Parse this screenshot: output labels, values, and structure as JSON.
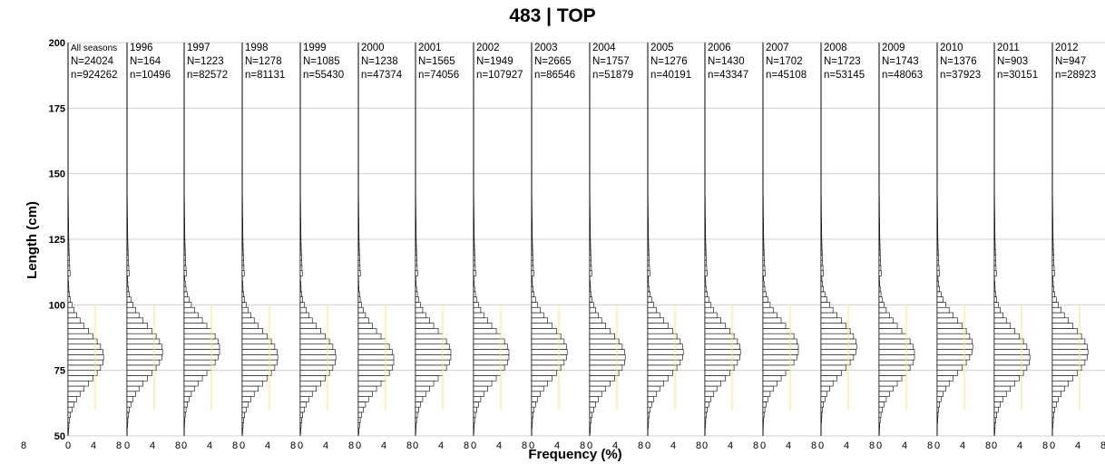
{
  "chart_data": {
    "type": "bar",
    "orientation": "horizontal-small-multiples",
    "title": "483 | TOP",
    "xlabel": "Frequency (%)",
    "ylabel": "Length (cm)",
    "ylim": [
      50,
      200
    ],
    "yticks": [
      50,
      75,
      100,
      125,
      150,
      175,
      200
    ],
    "xticks_first_panel": [
      "8"
    ],
    "xticks": [
      "0",
      "4",
      "8"
    ],
    "grid": "horizontal",
    "colors": {
      "bar_fill": "#ffffff",
      "bar_edge": "#000000",
      "grid": "#d0d0d0",
      "highlight": "#a8a8a8",
      "median_line": "#f0e68c"
    },
    "panels": [
      {
        "label": "All seasons",
        "N": "N=24024",
        "n": "n=924262",
        "mode": 80
      },
      {
        "label": "1996",
        "N": "N=164",
        "n": "n=10496",
        "mode": 82
      },
      {
        "label": "1997",
        "N": "N=1223",
        "n": "n=82572",
        "mode": 83
      },
      {
        "label": "1998",
        "N": "N=1278",
        "n": "n=81131",
        "mode": 80
      },
      {
        "label": "1999",
        "N": "N=1085",
        "n": "n=55430",
        "mode": 80
      },
      {
        "label": "2000",
        "N": "N=1238",
        "n": "n=47374",
        "mode": 79
      },
      {
        "label": "2001",
        "N": "N=1565",
        "n": "n=74056",
        "mode": 81
      },
      {
        "label": "2002",
        "N": "N=1949",
        "n": "n=107927",
        "mode": 81
      },
      {
        "label": "2003",
        "N": "N=2665",
        "n": "n=86546",
        "mode": 82
      },
      {
        "label": "2004",
        "N": "N=1757",
        "n": "n=51879",
        "mode": 80
      },
      {
        "label": "2005",
        "N": "N=1276",
        "n": "n=40191",
        "mode": 82
      },
      {
        "label": "2006",
        "N": "N=1430",
        "n": "n=43347",
        "mode": 82
      },
      {
        "label": "2007",
        "N": "N=1702",
        "n": "n=45108",
        "mode": 83
      },
      {
        "label": "2008",
        "N": "N=1723",
        "n": "n=53145",
        "mode": 84
      },
      {
        "label": "2009",
        "N": "N=1743",
        "n": "n=48063",
        "mode": 81
      },
      {
        "label": "2010",
        "N": "N=1376",
        "n": "n=37923",
        "mode": 84
      },
      {
        "label": "2011",
        "N": "N=903",
        "n": "n=30151",
        "mode": 80
      },
      {
        "label": "2012",
        "N": "N=947",
        "n": "n=28923",
        "mode": 82
      }
    ]
  }
}
